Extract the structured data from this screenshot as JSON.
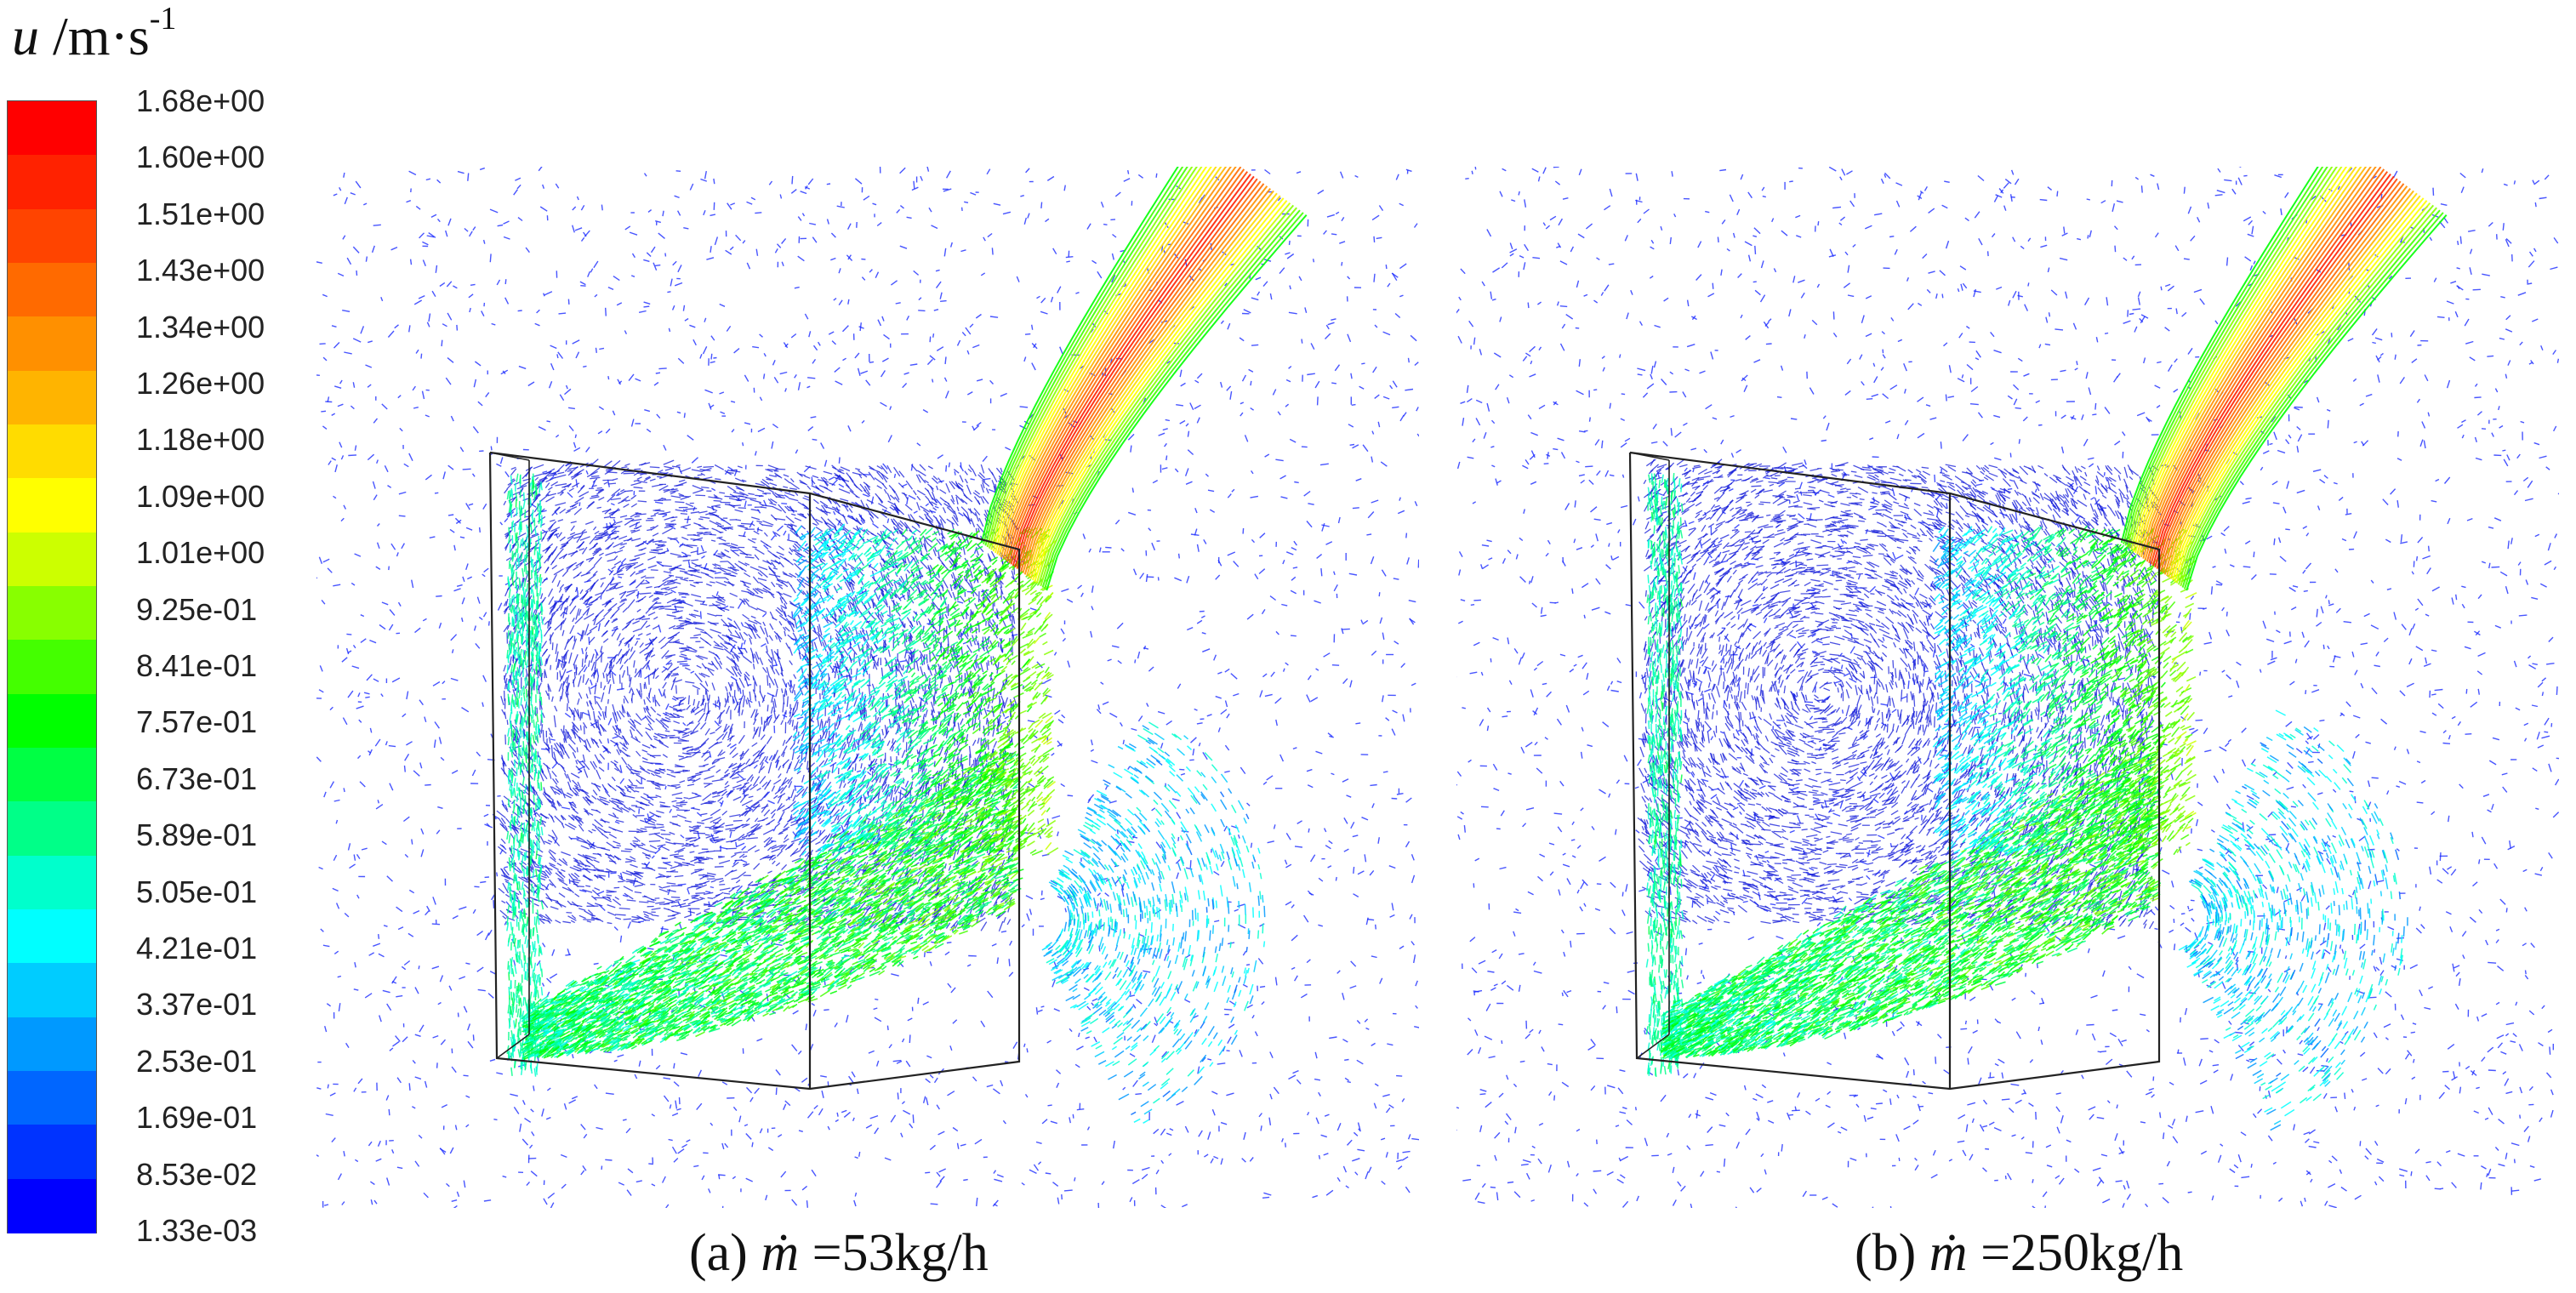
{
  "legend": {
    "symbol": "u",
    "unit_base": "/m·s",
    "unit_exponent": "-1",
    "ticks": [
      "1.68e+00",
      "1.60e+00",
      "1.51e+00",
      "1.43e+00",
      "1.34e+00",
      "1.26e+00",
      "1.18e+00",
      "1.09e+00",
      "1.01e+00",
      "9.25e-01",
      "8.41e-01",
      "7.57e-01",
      "6.73e-01",
      "5.89e-01",
      "5.05e-01",
      "4.21e-01",
      "3.37e-01",
      "2.53e-01",
      "1.69e-01",
      "8.53e-02",
      "1.33e-03"
    ],
    "colors": [
      "#ff0000",
      "#ff2200",
      "#ff4400",
      "#ff6a00",
      "#ff9000",
      "#ffb400",
      "#ffdc00",
      "#ffff00",
      "#ccff00",
      "#88ff00",
      "#44ff00",
      "#00ff00",
      "#00ff44",
      "#00ff88",
      "#00ffcc",
      "#00ffff",
      "#00ccff",
      "#0099ff",
      "#0066ff",
      "#0033ff",
      "#0000ff"
    ]
  },
  "panels": [
    {
      "caption_prefix": "(a) ",
      "symbol": "ṁ",
      "caption_value": " =53kg/h"
    },
    {
      "caption_prefix": "(b) ",
      "symbol": "ṁ",
      "caption_value": " =250kg/h"
    }
  ]
}
